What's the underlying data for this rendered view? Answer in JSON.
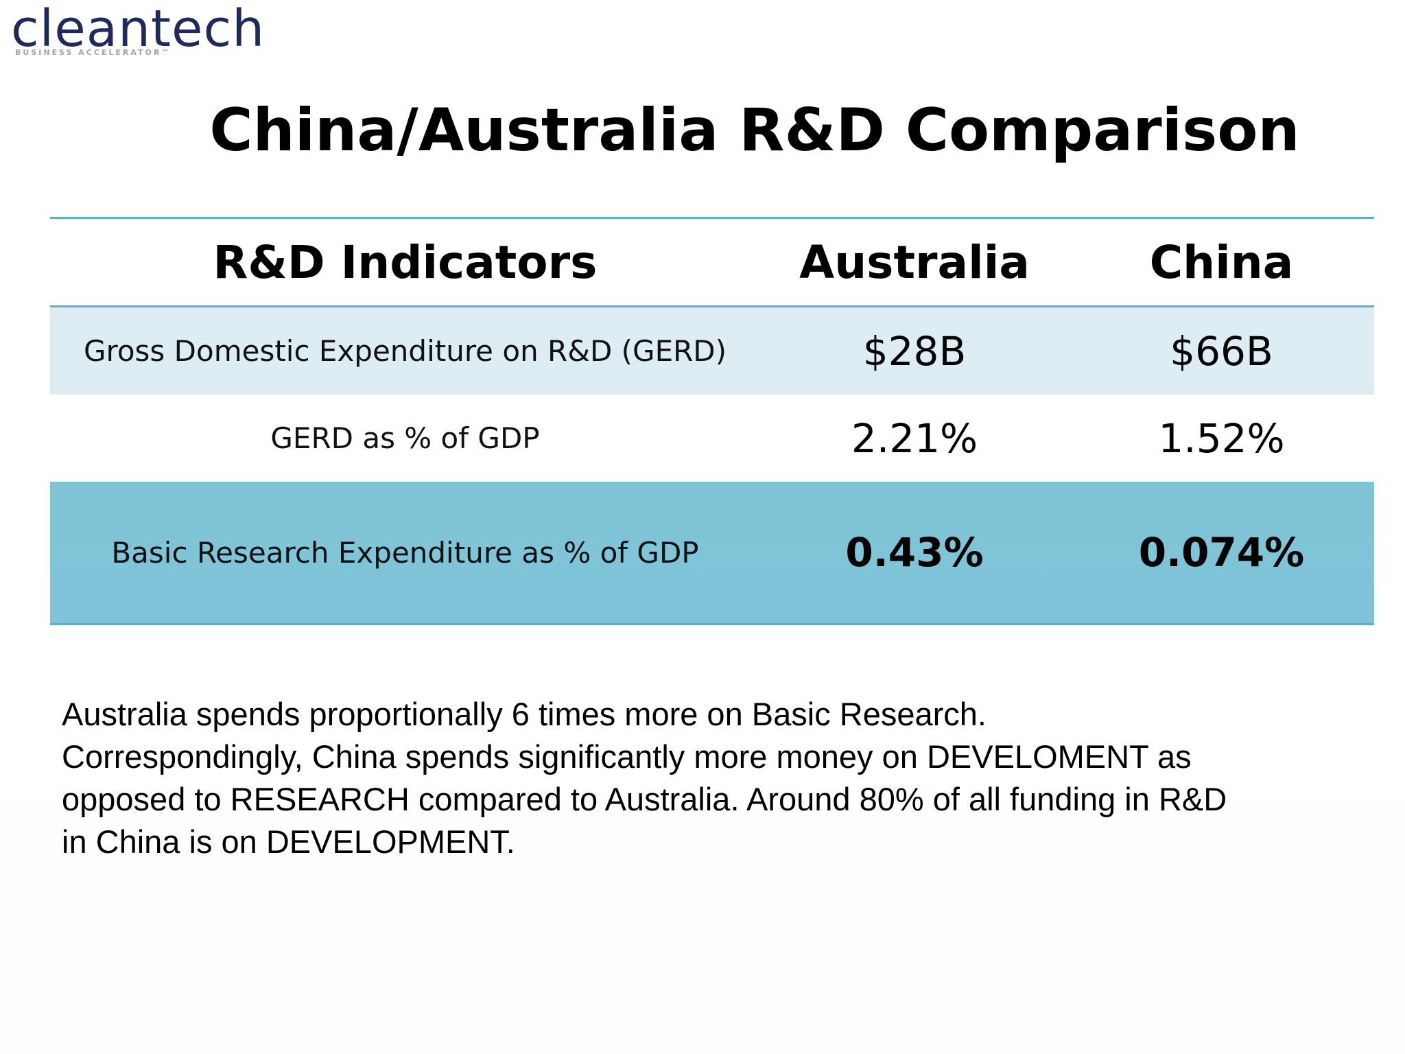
{
  "logo": {
    "name": "cleantech",
    "tagline": "BUSINESS ACCELERATOR™"
  },
  "title": "China/Australia R&D Comparison",
  "table": {
    "headers": [
      "R&D Indicators",
      "Australia",
      "China"
    ],
    "rows": [
      {
        "indicator": "Gross Domestic Expenditure on R&D (GERD)",
        "australia": "$28B",
        "china": "$66B"
      },
      {
        "indicator": "GERD as % of GDP",
        "australia": "2.21%",
        "china": "1.52%"
      },
      {
        "indicator": "Basic Research Expenditure as % of GDP",
        "australia": "0.43%",
        "china": "0.074%"
      }
    ]
  },
  "paragraph": {
    "lines": [
      "Australia spends proportionally 6 times more on Basic Research.",
      "Correspondingly, China spends significantly more money on DEVELOMENT as",
      "opposed to RESEARCH compared to Australia. Around 80% of all funding in R&D",
      "in China is on DEVELOPMENT."
    ]
  },
  "colors": {
    "accent_line": "#5ab0cc",
    "row_light": "#deedf4",
    "row_highlight": "#80c3d9",
    "logo": "#1f2a5c"
  }
}
